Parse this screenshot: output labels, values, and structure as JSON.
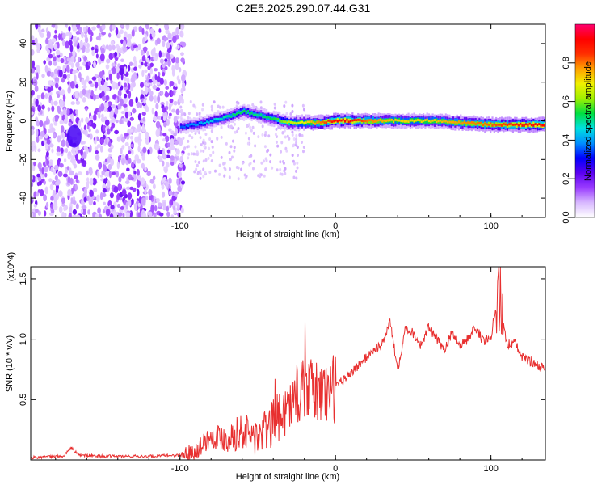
{
  "title": "C2E5.2025.290.07.44.G31",
  "chart_data": [
    {
      "type": "heatmap",
      "xlabel": "Height of straight line (km)",
      "ylabel": "Frequency (Hz)",
      "xlim": [
        -196,
        135
      ],
      "ylim": [
        -50,
        50
      ],
      "xticks": [
        -100,
        0,
        100
      ],
      "xtick_labels": [
        "-100",
        "0",
        "100"
      ],
      "yticks": [
        -40,
        -20,
        0,
        20,
        40
      ],
      "ytick_labels": [
        "-40",
        "-20",
        "0",
        "20",
        "40"
      ],
      "colorbar": {
        "label": "Normalized spectral amplitude",
        "range": [
          0,
          1
        ],
        "ticks": [
          0.0,
          0.2,
          0.4,
          0.6,
          0.8
        ],
        "tick_labels": [
          "0.0",
          "0.2",
          "0.4",
          "0.6",
          "0.8"
        ],
        "colormap": [
          "#ffffff",
          "#d8b8ff",
          "#9a3cff",
          "#5a00f0",
          "#0000ff",
          "#0090ff",
          "#00e0e0",
          "#00e040",
          "#a0f000",
          "#f0f000",
          "#ffa000",
          "#ff3000",
          "#ff0000",
          "#ff0070"
        ]
      },
      "noise_region_x": [
        -196,
        -97
      ],
      "ridge": {
        "x": [
          -100,
          -90,
          -80,
          -70,
          -60,
          -50,
          -40,
          -30,
          -20,
          -10,
          0,
          10,
          20,
          40,
          60,
          80,
          100,
          110,
          120,
          135
        ],
        "freq": [
          -3,
          -2,
          0,
          2,
          5,
          3,
          1,
          -1,
          -1,
          -1,
          0,
          0,
          0,
          0,
          0,
          -1,
          -2,
          -2,
          -2,
          -2
        ],
        "amp": [
          0.35,
          0.4,
          0.45,
          0.5,
          0.55,
          0.5,
          0.55,
          0.65,
          0.7,
          0.8,
          0.92,
          0.9,
          0.8,
          0.72,
          0.72,
          0.78,
          0.82,
          0.85,
          0.9,
          0.92
        ]
      },
      "blob": {
        "x": -168,
        "freq": -8,
        "amp": 0.25
      }
    },
    {
      "type": "line",
      "xlabel": "Height of straight line (km)",
      "ylabel": "SNR (10 * v/v)",
      "y_multiplier": "(x10^4)",
      "xlim": [
        -196,
        135
      ],
      "ylim": [
        0,
        1.6
      ],
      "xticks": [
        -100,
        0,
        100
      ],
      "xtick_labels": [
        "-100",
        "0",
        "100"
      ],
      "yticks": [
        0.5,
        1.0,
        1.5
      ],
      "ytick_labels": [
        "0.5",
        "1.0",
        "1.5"
      ],
      "color": "#e83030",
      "series": [
        {
          "name": "SNR",
          "x": [
            -196,
            -175,
            -170,
            -165,
            -150,
            -120,
            -100,
            -90,
            -80,
            -70,
            -60,
            -50,
            -40,
            -30,
            -20,
            -10,
            0,
            10,
            20,
            25,
            30,
            35,
            40,
            45,
            50,
            55,
            60,
            65,
            70,
            75,
            80,
            85,
            90,
            95,
            100,
            105,
            110,
            115,
            120,
            125,
            135
          ],
          "y": [
            0.02,
            0.03,
            0.1,
            0.04,
            0.03,
            0.03,
            0.04,
            0.08,
            0.2,
            0.18,
            0.24,
            0.18,
            0.3,
            0.45,
            0.6,
            0.55,
            0.6,
            0.72,
            0.85,
            0.92,
            0.95,
            1.15,
            0.75,
            1.1,
            1.05,
            0.95,
            1.1,
            1.0,
            0.92,
            1.05,
            0.95,
            1.0,
            1.1,
            0.98,
            1.02,
            1.45,
            0.95,
            0.98,
            0.85,
            0.82,
            0.75
          ]
        }
      ]
    }
  ]
}
